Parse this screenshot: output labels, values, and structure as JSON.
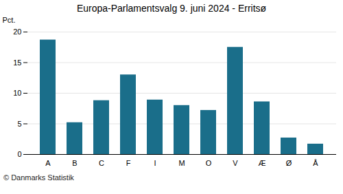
{
  "chart_data": {
    "type": "bar",
    "title": "Europa-Parlamentsvalg 9. juni 2024 - Erritsø",
    "categories": [
      "A",
      "B",
      "C",
      "F",
      "I",
      "M",
      "O",
      "V",
      "Æ",
      "Ø",
      "Å"
    ],
    "values": [
      18.7,
      5.2,
      8.8,
      13.0,
      8.9,
      8.0,
      7.2,
      17.5,
      8.6,
      2.7,
      1.7
    ],
    "color": "#1a6e8a",
    "ylabel": "Pct.",
    "caption": "© Danmarks Statistik",
    "ylim": [
      0,
      20
    ],
    "yticks": [
      0,
      5,
      10,
      15,
      20
    ],
    "grid": true
  }
}
